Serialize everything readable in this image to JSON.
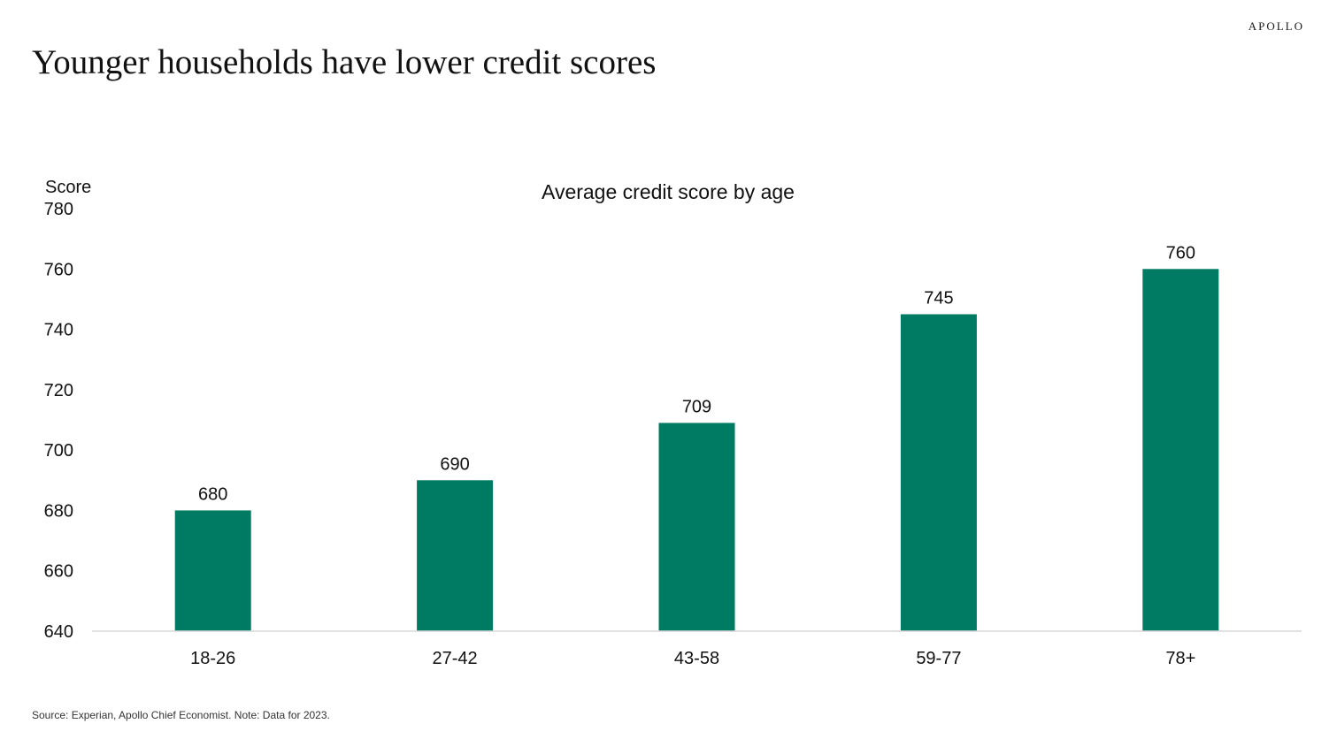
{
  "brand": "APOLLO",
  "page_title": "Younger households have lower credit scores",
  "source_note": "Source: Experian, Apollo Chief Economist. Note: Data for 2023.",
  "chart_data": {
    "type": "bar",
    "title": "Average credit score by age",
    "xlabel": "",
    "ylabel": "Score",
    "categories": [
      "18-26",
      "27-42",
      "43-58",
      "59-77",
      "78+"
    ],
    "values": [
      680,
      690,
      709,
      745,
      760
    ],
    "data_labels": [
      "680",
      "690",
      "709",
      "745",
      "760"
    ],
    "ylim": [
      640,
      780
    ],
    "yticks": [
      640,
      660,
      680,
      700,
      720,
      740,
      760,
      780
    ],
    "grid": false,
    "legend": "none",
    "bar_color": "#007B63",
    "axis_color": "#d9d9d9"
  }
}
